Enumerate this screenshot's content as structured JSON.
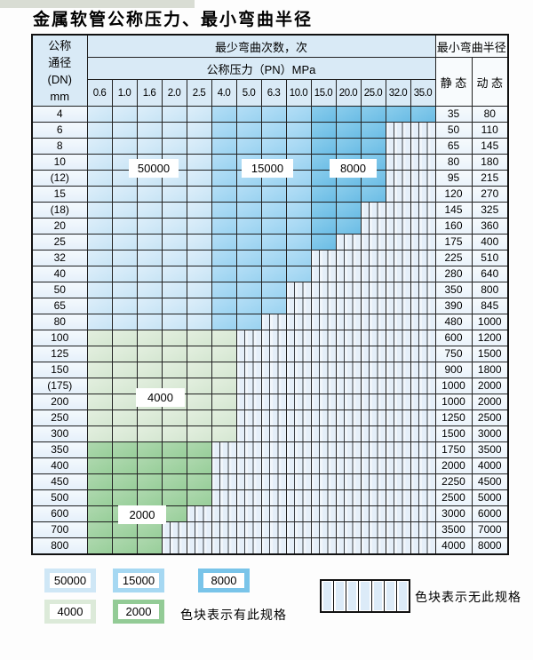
{
  "page_title": "金属软管公称压力、最小弯曲半径",
  "table": {
    "header": {
      "dn_line1": "公称",
      "dn_line2": "通径",
      "dn_line3": "(DN)",
      "dn_line4": "mm",
      "cycles_title": "最少弯曲次数，次",
      "pressure_title": "公称压力（PN）MPa",
      "pressures": [
        "0.6",
        "1.0",
        "1.6",
        "2.0",
        "2.5",
        "4.0",
        "5.0",
        "6.3",
        "10.0",
        "15.0",
        "20.0",
        "25.0",
        "32.0",
        "35.0"
      ],
      "radius_title": "最小弯曲半径",
      "static_label": "静 态",
      "dynamic_label": "动 态"
    },
    "rows": [
      {
        "dn": "4",
        "count": 14,
        "palette": "blue",
        "static": "35",
        "dynamic": "80"
      },
      {
        "dn": "6",
        "count": 12,
        "palette": "blue",
        "static": "50",
        "dynamic": "110"
      },
      {
        "dn": "8",
        "count": 12,
        "palette": "blue",
        "static": "65",
        "dynamic": "145"
      },
      {
        "dn": "10",
        "count": 12,
        "palette": "blue",
        "static": "80",
        "dynamic": "180"
      },
      {
        "dn": "(12)",
        "count": 12,
        "palette": "blue",
        "static": "95",
        "dynamic": "215"
      },
      {
        "dn": "15",
        "count": 12,
        "palette": "blue",
        "static": "120",
        "dynamic": "270"
      },
      {
        "dn": "(18)",
        "count": 11,
        "palette": "blue",
        "static": "145",
        "dynamic": "325"
      },
      {
        "dn": "20",
        "count": 11,
        "palette": "blue",
        "static": "160",
        "dynamic": "360"
      },
      {
        "dn": "25",
        "count": 10,
        "palette": "blue",
        "static": "175",
        "dynamic": "400"
      },
      {
        "dn": "32",
        "count": 9,
        "palette": "blue",
        "static": "225",
        "dynamic": "510"
      },
      {
        "dn": "40",
        "count": 9,
        "palette": "blue",
        "static": "280",
        "dynamic": "640"
      },
      {
        "dn": "50",
        "count": 8,
        "palette": "blue",
        "static": "350",
        "dynamic": "800"
      },
      {
        "dn": "65",
        "count": 8,
        "palette": "blue",
        "static": "390",
        "dynamic": "845"
      },
      {
        "dn": "80",
        "count": 7,
        "palette": "blue",
        "static": "480",
        "dynamic": "1000"
      },
      {
        "dn": "100",
        "count": 6,
        "palette": "green4000",
        "static": "600",
        "dynamic": "1200"
      },
      {
        "dn": "125",
        "count": 6,
        "palette": "green4000",
        "static": "750",
        "dynamic": "1500"
      },
      {
        "dn": "150",
        "count": 6,
        "palette": "green4000",
        "static": "900",
        "dynamic": "1800"
      },
      {
        "dn": "(175)",
        "count": 6,
        "palette": "green4000",
        "static": "1000",
        "dynamic": "2000"
      },
      {
        "dn": "200",
        "count": 6,
        "palette": "green4000",
        "static": "1000",
        "dynamic": "2000"
      },
      {
        "dn": "250",
        "count": 6,
        "palette": "green4000",
        "static": "1250",
        "dynamic": "2500"
      },
      {
        "dn": "300",
        "count": 6,
        "palette": "green4000",
        "static": "1500",
        "dynamic": "3000"
      },
      {
        "dn": "350",
        "count": 5,
        "palette": "green2000",
        "static": "1750",
        "dynamic": "3500"
      },
      {
        "dn": "400",
        "count": 5,
        "palette": "green2000",
        "static": "2000",
        "dynamic": "4000"
      },
      {
        "dn": "450",
        "count": 5,
        "palette": "green2000",
        "static": "2250",
        "dynamic": "4500"
      },
      {
        "dn": "500",
        "count": 5,
        "palette": "green2000",
        "static": "2500",
        "dynamic": "5000"
      },
      {
        "dn": "600",
        "count": 4,
        "palette": "green2000",
        "static": "3000",
        "dynamic": "6000"
      },
      {
        "dn": "700",
        "count": 3,
        "palette": "green2000",
        "static": "3500",
        "dynamic": "7000"
      },
      {
        "dn": "800",
        "count": 3,
        "palette": "green2000",
        "static": "4000",
        "dynamic": "8000"
      }
    ]
  },
  "cycle_labels": {
    "c50000": "50000",
    "c15000": "15000",
    "c8000": "8000",
    "c4000": "4000",
    "c2000": "2000"
  },
  "legend": {
    "has_spec_text": "色块表示有此规格",
    "no_spec_text": "色块表示无此规格"
  },
  "colors": {
    "cycles_50000": "#cfe7f6",
    "cycles_15000": "#a6d8f2",
    "cycles_8000": "#79c4e9",
    "cycles_4000": "#dcead9",
    "cycles_2000": "#93cb96",
    "header_blue": "#d9eaf6",
    "no_spec_fill": "#e5eff9",
    "grid_line": "#222222"
  },
  "chart_data": {
    "type": "table",
    "title": "金属软管公称压力、最小弯曲半径",
    "columns": [
      "公称通径(DN) mm",
      "公称压力(PN) MPa 0.6–35.0 (最少弯曲次数色块)",
      "最小弯曲半径 静态",
      "最小弯曲半径 动态"
    ],
    "pressure_columns_MPa": [
      0.6,
      1.0,
      1.6,
      2.0,
      2.5,
      4.0,
      5.0,
      6.3,
      10.0,
      15.0,
      20.0,
      25.0,
      32.0,
      35.0
    ],
    "bend_cycle_bands": [
      {
        "cycles": 50000,
        "applies_to": "PN 0.6–2.5 MPa, DN 4–80"
      },
      {
        "cycles": 15000,
        "applies_to": "PN 4.0–10.0 MPa, DN 4–80"
      },
      {
        "cycles": 8000,
        "applies_to": "PN 15.0–35.0 MPa, DN 4–80"
      },
      {
        "cycles": 4000,
        "applies_to": "DN 100–300, PN ≤ 4.0 MPa"
      },
      {
        "cycles": 2000,
        "applies_to": "DN 350–800, PN ≤ 2.5/2.0/1.6 MPa"
      }
    ],
    "rows": [
      {
        "dn": "4",
        "spec_max_pn": 35.0,
        "static_radius": 35,
        "dynamic_radius": 80
      },
      {
        "dn": "6",
        "spec_max_pn": 25.0,
        "static_radius": 50,
        "dynamic_radius": 110
      },
      {
        "dn": "8",
        "spec_max_pn": 25.0,
        "static_radius": 65,
        "dynamic_radius": 145
      },
      {
        "dn": "10",
        "spec_max_pn": 25.0,
        "static_radius": 80,
        "dynamic_radius": 180
      },
      {
        "dn": "(12)",
        "spec_max_pn": 25.0,
        "static_radius": 95,
        "dynamic_radius": 215
      },
      {
        "dn": "15",
        "spec_max_pn": 25.0,
        "static_radius": 120,
        "dynamic_radius": 270
      },
      {
        "dn": "(18)",
        "spec_max_pn": 20.0,
        "static_radius": 145,
        "dynamic_radius": 325
      },
      {
        "dn": "20",
        "spec_max_pn": 20.0,
        "static_radius": 160,
        "dynamic_radius": 360
      },
      {
        "dn": "25",
        "spec_max_pn": 15.0,
        "static_radius": 175,
        "dynamic_radius": 400
      },
      {
        "dn": "32",
        "spec_max_pn": 10.0,
        "static_radius": 225,
        "dynamic_radius": 510
      },
      {
        "dn": "40",
        "spec_max_pn": 10.0,
        "static_radius": 280,
        "dynamic_radius": 640
      },
      {
        "dn": "50",
        "spec_max_pn": 6.3,
        "static_radius": 350,
        "dynamic_radius": 800
      },
      {
        "dn": "65",
        "spec_max_pn": 6.3,
        "static_radius": 390,
        "dynamic_radius": 845
      },
      {
        "dn": "80",
        "spec_max_pn": 5.0,
        "static_radius": 480,
        "dynamic_radius": 1000
      },
      {
        "dn": "100",
        "spec_max_pn": 4.0,
        "static_radius": 600,
        "dynamic_radius": 1200
      },
      {
        "dn": "125",
        "spec_max_pn": 4.0,
        "static_radius": 750,
        "dynamic_radius": 1500
      },
      {
        "dn": "150",
        "spec_max_pn": 4.0,
        "static_radius": 900,
        "dynamic_radius": 1800
      },
      {
        "dn": "(175)",
        "spec_max_pn": 4.0,
        "static_radius": 1000,
        "dynamic_radius": 2000
      },
      {
        "dn": "200",
        "spec_max_pn": 4.0,
        "static_radius": 1000,
        "dynamic_radius": 2000
      },
      {
        "dn": "250",
        "spec_max_pn": 4.0,
        "static_radius": 1250,
        "dynamic_radius": 2500
      },
      {
        "dn": "300",
        "spec_max_pn": 4.0,
        "static_radius": 1500,
        "dynamic_radius": 3000
      },
      {
        "dn": "350",
        "spec_max_pn": 2.5,
        "static_radius": 1750,
        "dynamic_radius": 3500
      },
      {
        "dn": "400",
        "spec_max_pn": 2.5,
        "static_radius": 2000,
        "dynamic_radius": 4000
      },
      {
        "dn": "450",
        "spec_max_pn": 2.5,
        "static_radius": 2250,
        "dynamic_radius": 4500
      },
      {
        "dn": "500",
        "spec_max_pn": 2.5,
        "static_radius": 2500,
        "dynamic_radius": 5000
      },
      {
        "dn": "600",
        "spec_max_pn": 2.0,
        "static_radius": 3000,
        "dynamic_radius": 6000
      },
      {
        "dn": "700",
        "spec_max_pn": 1.6,
        "static_radius": 3500,
        "dynamic_radius": 7000
      },
      {
        "dn": "800",
        "spec_max_pn": 1.6,
        "static_radius": 4000,
        "dynamic_radius": 8000
      }
    ],
    "legend": [
      "50000",
      "15000",
      "8000",
      "4000",
      "2000",
      "色块表示有此规格",
      "色块表示无此规格"
    ],
    "grid": true
  }
}
